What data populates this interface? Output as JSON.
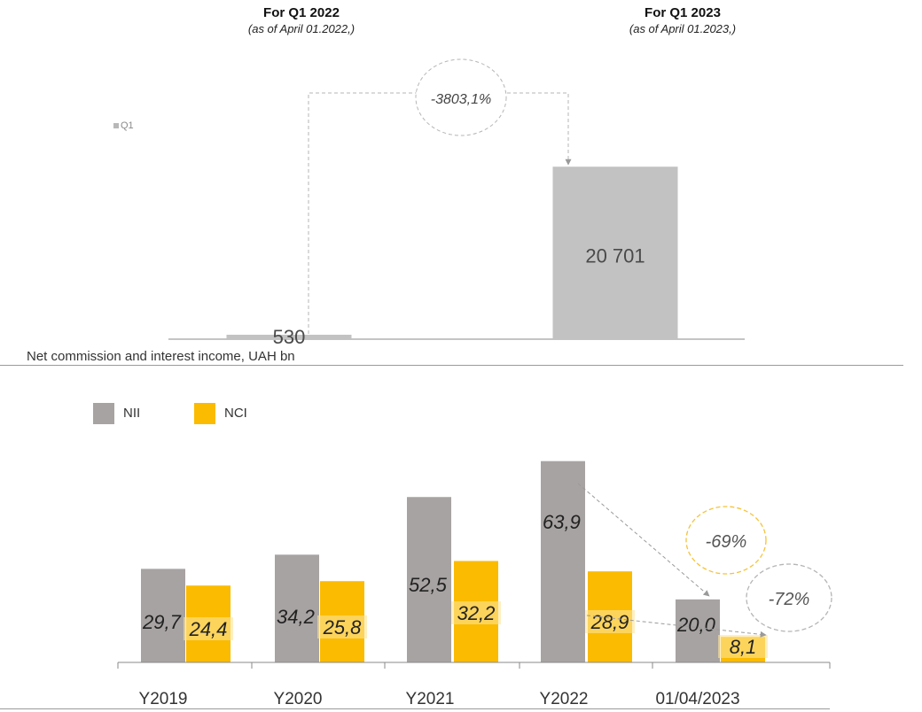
{
  "chart_data": [
    {
      "type": "bar",
      "legend": "Q1",
      "legend_placement": "top-left",
      "periods": [
        {
          "title": "For Q1 2022",
          "subtitle": "(as of April 01.2022,)"
        },
        {
          "title": "For Q1 2023",
          "subtitle": "(as of April 01.2023,)"
        }
      ],
      "categories": [
        "Q1 2022",
        "Q1 2023"
      ],
      "values": [
        530,
        20701
      ],
      "value_labels": [
        "530",
        "20 701"
      ],
      "ylim": [
        0,
        22000
      ],
      "annotation": "-3803,1%",
      "color": "#c2c2c2"
    },
    {
      "type": "bar",
      "title": "Net commission and interest income, UAH bn",
      "categories": [
        "Y2019",
        "Y2020",
        "Y2021",
        "Y2022",
        "01/04/2023"
      ],
      "series": [
        {
          "name": "NII",
          "color": "#a7a3a2",
          "values": [
            29.7,
            34.2,
            52.5,
            63.9,
            20.0
          ],
          "labels": [
            "29,7",
            "34,2",
            "52,5",
            "63,9",
            "20,0"
          ]
        },
        {
          "name": "NCI",
          "color": "#fbbb00",
          "values": [
            24.4,
            25.8,
            32.2,
            28.9,
            8.1
          ],
          "labels": [
            "24,4",
            "25,8",
            "32,2",
            "28,9",
            "8,1"
          ]
        }
      ],
      "ylim": [
        0,
        70
      ],
      "annotations": [
        "-69%",
        "-72%"
      ],
      "legend_placement": "top-left",
      "grid": false
    }
  ]
}
